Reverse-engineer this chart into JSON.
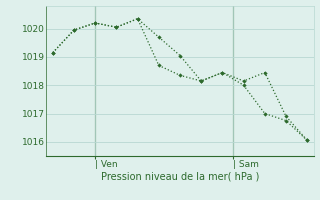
{
  "line1_x": [
    0,
    1,
    2,
    3,
    4,
    5,
    6,
    7,
    8,
    9,
    10,
    11,
    12
  ],
  "line1_y": [
    1019.15,
    1019.95,
    1020.2,
    1020.05,
    1020.35,
    1019.7,
    1019.05,
    1018.15,
    1018.45,
    1018.15,
    1018.45,
    1016.9,
    1016.05
  ],
  "line2_x": [
    0,
    1,
    2,
    3,
    4,
    5,
    6,
    7,
    8,
    9,
    10,
    11,
    12
  ],
  "line2_y": [
    1019.15,
    1019.95,
    1020.2,
    1020.05,
    1020.35,
    1018.7,
    1018.35,
    1018.15,
    1018.45,
    1018.0,
    1017.0,
    1016.75,
    1016.05
  ],
  "line_color": "#2d6a2d",
  "bg_color": "#dff0ec",
  "grid_color": "#b8d8d2",
  "tick_color": "#2d6a2d",
  "label_color": "#2d6a2d",
  "ylim": [
    1015.5,
    1020.8
  ],
  "yticks": [
    1016,
    1017,
    1018,
    1019,
    1020
  ],
  "xlabel": "Pression niveau de la mer( hPa )",
  "day_labels": [
    "| Ven",
    "| Sam"
  ],
  "day_positions": [
    2.0,
    8.5
  ],
  "xlim": [
    -0.3,
    12.3
  ]
}
